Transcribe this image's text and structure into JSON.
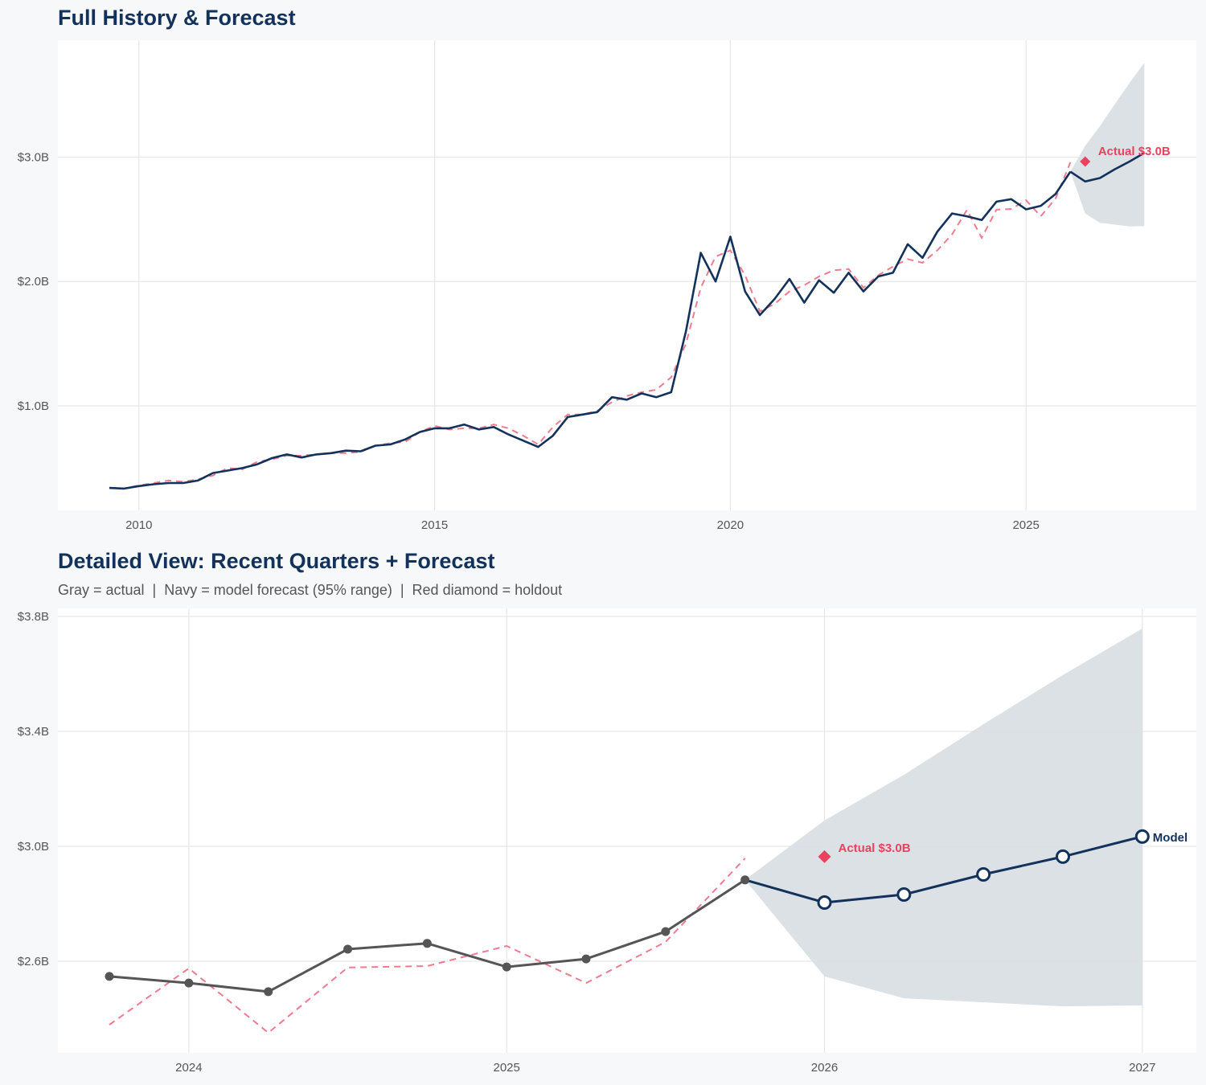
{
  "colors": {
    "navy": "#13325b",
    "gray": "#555555",
    "red": "#e8425f",
    "dashed": "#ef7b8e",
    "band": "#dadfe5",
    "background": "#f7f8fa"
  },
  "chart_data": [
    {
      "type": "line",
      "title": "Full History & Forecast",
      "xlim": [
        2008.63,
        2027.88
      ],
      "ylim": [
        0.16,
        3.94
      ],
      "x_ticks": [
        2010,
        2015,
        2020,
        2025
      ],
      "x_tick_labels": [
        "2010",
        "2015",
        "2020",
        "2025"
      ],
      "y_ticks": [
        1.0,
        2.0,
        3.0
      ],
      "y_tick_labels": [
        "$1.0B",
        "$2.0B",
        "$3.0B"
      ],
      "grid": true,
      "history": {
        "x_start": 2009.5,
        "x_step": 0.25,
        "values": [
          0.34,
          0.335,
          0.355,
          0.37,
          0.38,
          0.38,
          0.4,
          0.46,
          0.48,
          0.5,
          0.53,
          0.58,
          0.61,
          0.585,
          0.61,
          0.62,
          0.64,
          0.635,
          0.68,
          0.69,
          0.73,
          0.79,
          0.82,
          0.82,
          0.85,
          0.81,
          0.83,
          0.77,
          0.72,
          0.67,
          0.76,
          0.91,
          0.93,
          0.95,
          1.07,
          1.05,
          1.1,
          1.07,
          1.11,
          1.6,
          2.23,
          2.0,
          2.36,
          1.92,
          1.73,
          1.86,
          2.02,
          1.83,
          2.01,
          1.91,
          2.07,
          1.92,
          2.04,
          2.07,
          2.3,
          2.19,
          2.4,
          2.547,
          2.524,
          2.494,
          2.642,
          2.662,
          2.58,
          2.608,
          2.703,
          2.883
        ]
      },
      "fitted": {
        "x_start": 2009.5,
        "x_step": 0.25,
        "values": [
          0.34,
          0.335,
          0.36,
          0.38,
          0.4,
          0.39,
          0.41,
          0.44,
          0.5,
          0.49,
          0.55,
          0.57,
          0.6,
          0.6,
          0.61,
          0.62,
          0.62,
          0.63,
          0.68,
          0.7,
          0.71,
          0.79,
          0.84,
          0.81,
          0.82,
          0.82,
          0.85,
          0.82,
          0.76,
          0.69,
          0.83,
          0.93,
          0.93,
          0.96,
          1.03,
          1.08,
          1.11,
          1.13,
          1.23,
          1.5,
          1.95,
          2.2,
          2.25,
          2.05,
          1.76,
          1.82,
          1.92,
          1.97,
          2.04,
          2.09,
          2.1,
          1.95,
          2.05,
          2.12,
          2.18,
          2.15,
          2.25,
          2.379,
          2.575,
          2.351,
          2.578,
          2.583,
          2.653,
          2.524,
          2.667,
          2.958
        ]
      },
      "forecast": {
        "x": [
          2025.75,
          2026.0,
          2026.25,
          2026.5,
          2026.75,
          2027.0
        ],
        "values": [
          2.883,
          2.804,
          2.832,
          2.902,
          2.964,
          3.034
        ],
        "upper": [
          2.883,
          3.09,
          3.249,
          3.425,
          3.596,
          3.758
        ],
        "lower": [
          2.883,
          2.547,
          2.471,
          2.457,
          2.443,
          2.446
        ]
      },
      "holdout": {
        "x": 2026.0,
        "value": 2.964,
        "label": "Actual $3.0B"
      }
    },
    {
      "type": "line",
      "title": "Detailed View: Recent Quarters + Forecast",
      "subtitle": "Gray = actual  |  Navy = model forecast (95% range)  |  Red diamond = holdout",
      "xlim": [
        2023.588,
        2027.17
      ],
      "ylim": [
        2.281,
        3.828
      ],
      "x_ticks": [
        2024,
        2025,
        2026,
        2027
      ],
      "x_tick_labels": [
        "2024",
        "2025",
        "2026",
        "2027"
      ],
      "y_ticks": [
        2.6,
        3.0,
        3.4,
        3.8
      ],
      "y_tick_labels": [
        "$2.6B",
        "$3.0B",
        "$3.4B",
        "$3.8B"
      ],
      "grid": true,
      "actual": {
        "x": [
          2023.75,
          2024.0,
          2024.25,
          2024.5,
          2024.75,
          2025.0,
          2025.25,
          2025.5,
          2025.75
        ],
        "values": [
          2.547,
          2.524,
          2.494,
          2.642,
          2.662,
          2.58,
          2.608,
          2.703,
          2.883
        ]
      },
      "fitted": {
        "x": [
          2023.75,
          2024.0,
          2024.25,
          2024.5,
          2024.75,
          2025.0,
          2025.25,
          2025.5,
          2025.75
        ],
        "values": [
          2.379,
          2.575,
          2.351,
          2.578,
          2.583,
          2.653,
          2.524,
          2.667,
          2.958
        ]
      },
      "forecast": {
        "x": [
          2025.75,
          2026.0,
          2026.25,
          2026.5,
          2026.75,
          2027.0
        ],
        "values": [
          2.883,
          2.804,
          2.832,
          2.902,
          2.964,
          3.034
        ],
        "upper": [
          2.883,
          3.09,
          3.249,
          3.425,
          3.596,
          3.758
        ],
        "lower": [
          2.883,
          2.547,
          2.471,
          2.457,
          2.443,
          2.446
        ],
        "end_label": "Model"
      },
      "holdout": {
        "x": 2026.0,
        "value": 2.964,
        "label": "Actual $3.0B"
      }
    }
  ]
}
